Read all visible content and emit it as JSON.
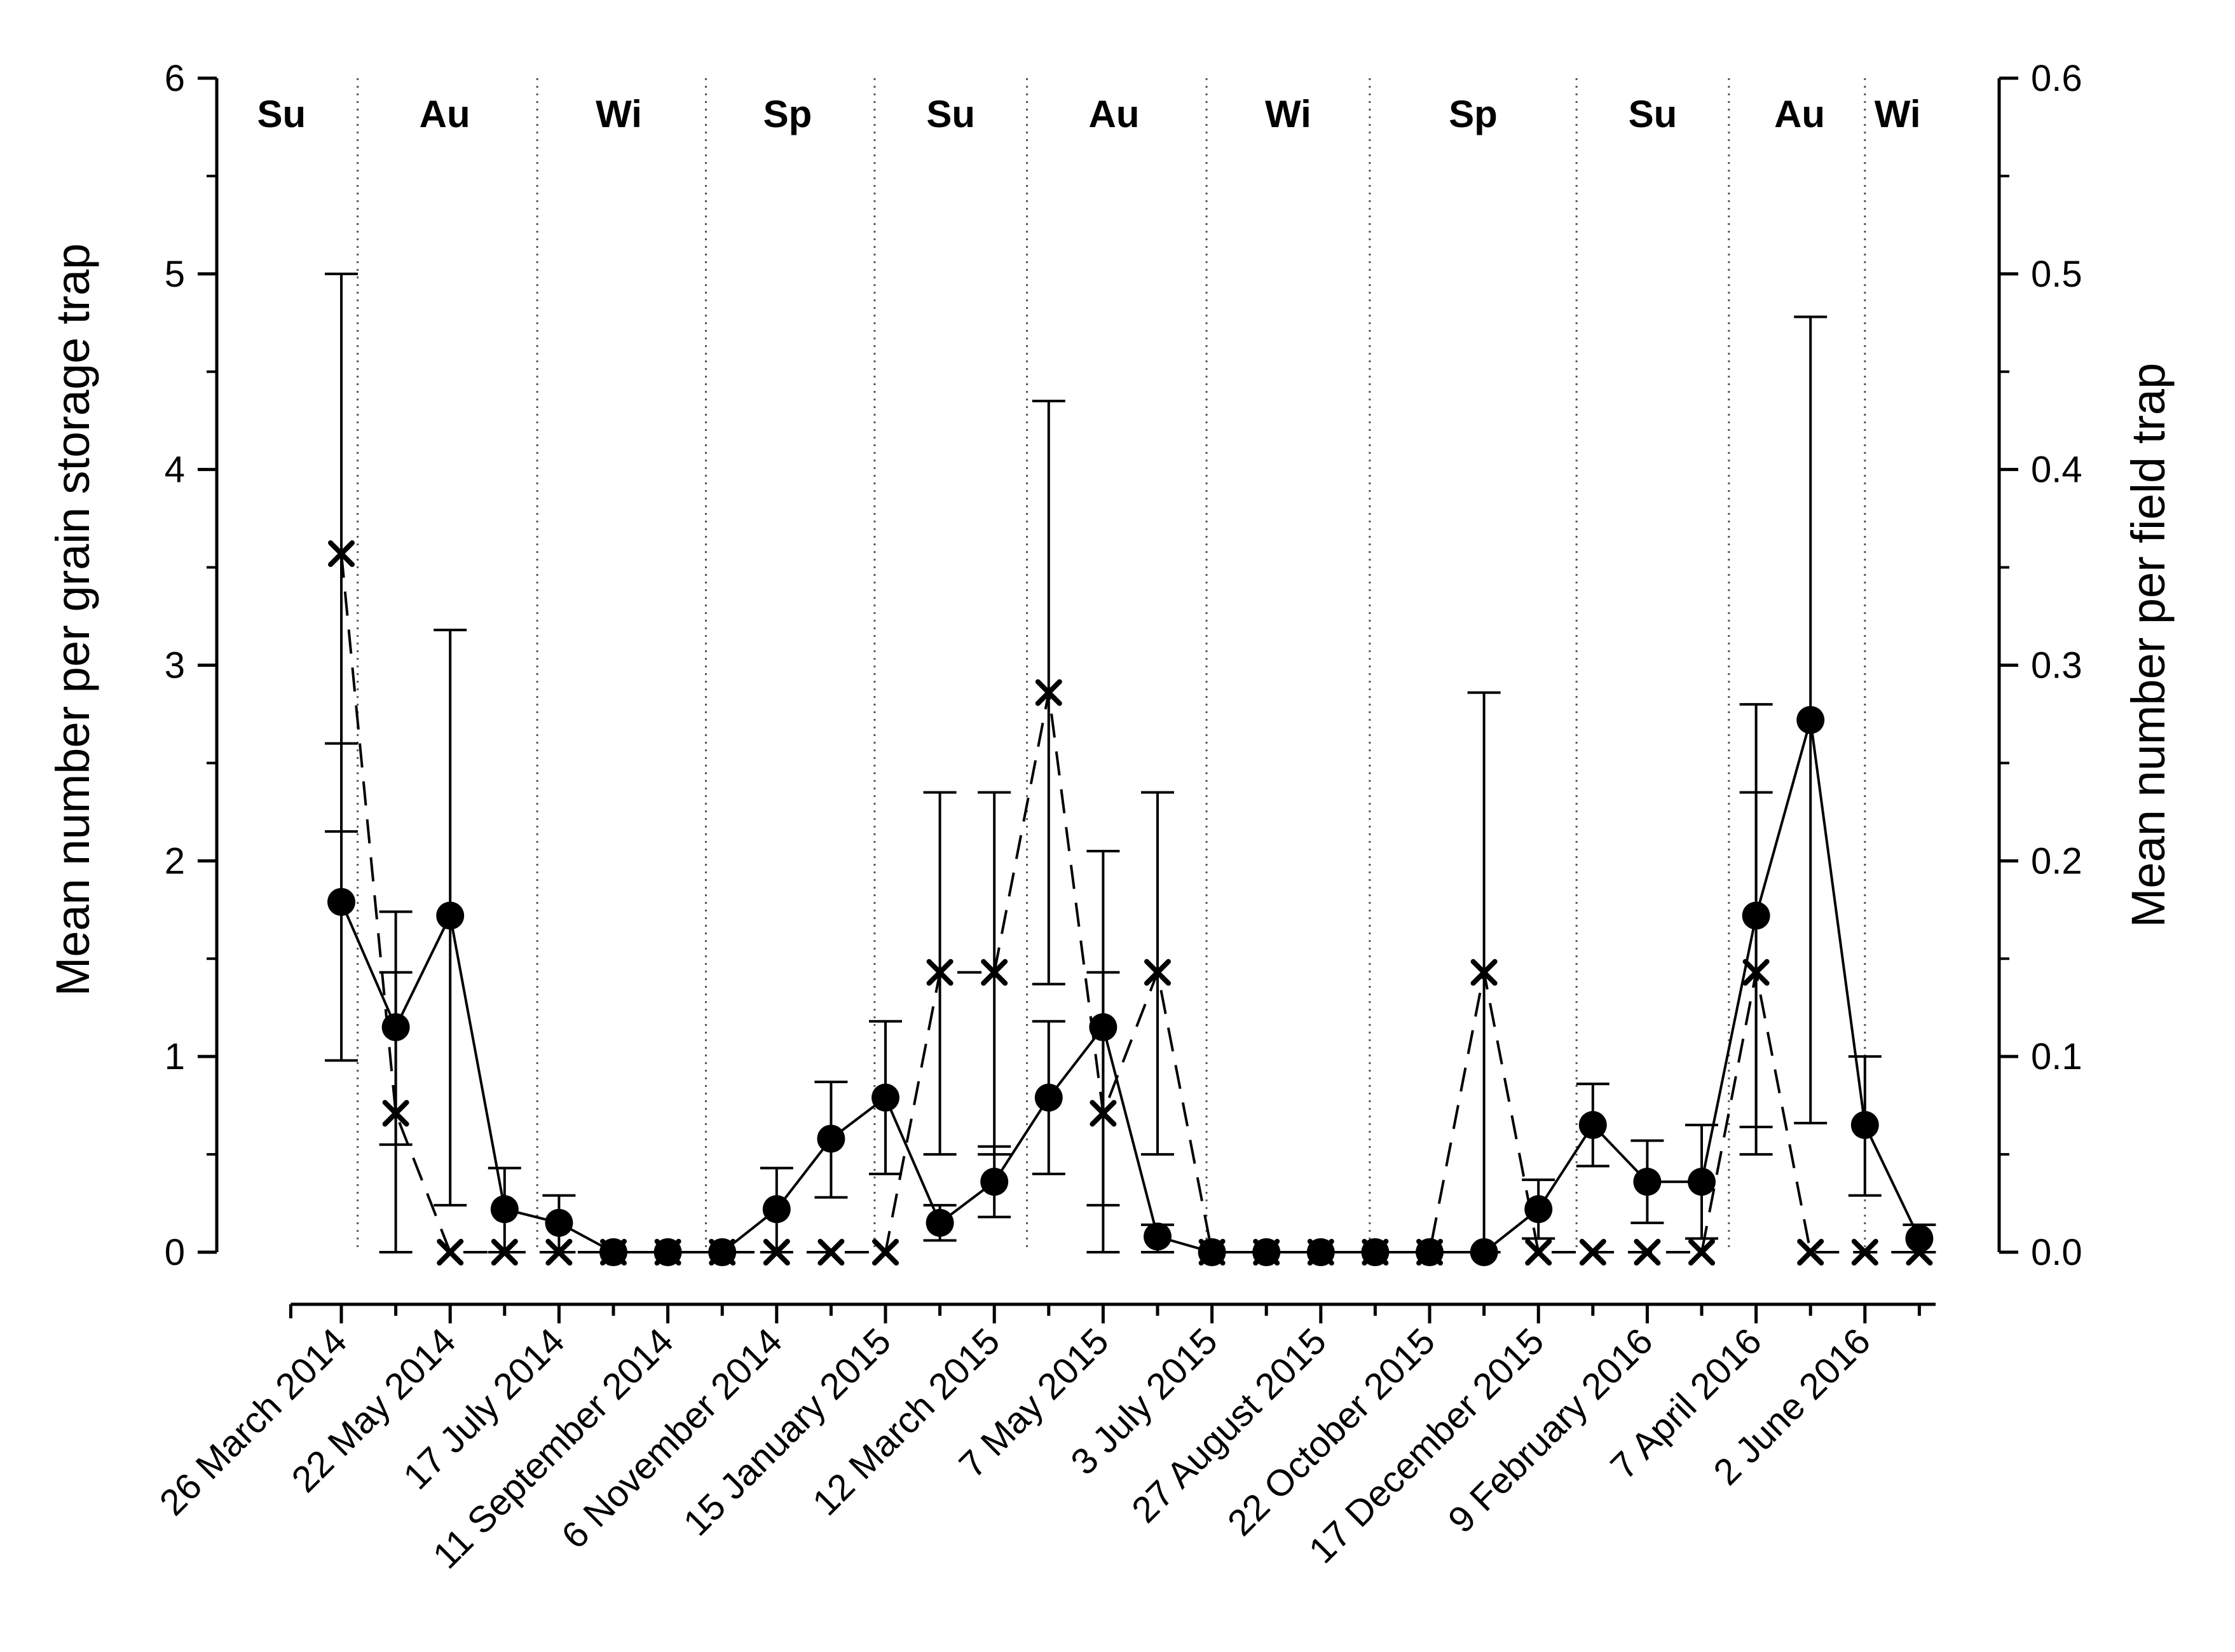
{
  "chart_data": {
    "type": "line",
    "ylabel_left": "Mean number per grain storage trap",
    "ylabel_right": "Mean number per field trap",
    "ylim_left": [
      0,
      6
    ],
    "ylim_right": [
      0,
      0.6
    ],
    "yticks_left": [
      "0",
      "1",
      "2",
      "3",
      "4",
      "5",
      "6"
    ],
    "yticks_right": [
      "0.0",
      "0.1",
      "0.2",
      "0.3",
      "0.4",
      "0.5",
      "0.6"
    ],
    "x_dates": [
      "26 March 2014",
      "22 May 2014",
      "17 July 2014",
      "11 September 2014",
      "6 November 2014",
      "15 January 2015",
      "12 March 2015",
      "7 May 2015",
      "3 July 2015",
      "27 August 2015",
      "22 October 2015",
      "17 December 2015",
      "9 February 2016",
      "7 April 2016",
      "2 June 2016"
    ],
    "x_index_range": [
      -1,
      29.3
    ],
    "season_boundaries": [
      0.3,
      3.6,
      6.7,
      9.8,
      12.6,
      15.9,
      18.9,
      22.7,
      25.5,
      28
    ],
    "seasons": [
      {
        "label": "Su",
        "x": -1.1
      },
      {
        "label": "Au",
        "x": 1.9
      },
      {
        "label": "Wi",
        "x": 5.1
      },
      {
        "label": "Sp",
        "x": 8.2
      },
      {
        "label": "Su",
        "x": 11.2
      },
      {
        "label": "Au",
        "x": 14.2
      },
      {
        "label": "Wi",
        "x": 17.4
      },
      {
        "label": "Sp",
        "x": 20.8
      },
      {
        "label": "Su",
        "x": 24.1
      },
      {
        "label": "Au",
        "x": 26.8
      },
      {
        "label": "Wi",
        "x": 28.6
      }
    ],
    "series": [
      {
        "name": "Grain storage traps",
        "axis": "left",
        "marker": "circle",
        "line": "solid",
        "x": [
          0,
          1,
          2,
          3,
          4,
          5,
          6,
          7,
          8,
          9,
          10,
          11,
          12,
          13,
          14,
          15,
          16,
          17,
          18,
          19,
          20,
          21,
          22,
          23,
          24,
          25,
          26,
          27,
          28,
          29
        ],
        "values": [
          1.79,
          1.15,
          1.72,
          0.22,
          0.15,
          0.0,
          0.0,
          0.0,
          0.22,
          0.58,
          0.79,
          0.15,
          0.36,
          0.79,
          1.15,
          0.08,
          0.0,
          0.0,
          0.0,
          0.0,
          0.0,
          0.0,
          0.22,
          0.65,
          0.36,
          0.36,
          1.72,
          2.72,
          0.65,
          0.07
        ],
        "err_low": [
          0.98,
          0.55,
          0.24,
          0.0,
          0.0,
          0.0,
          0.0,
          0.0,
          0.0,
          0.28,
          0.4,
          0.06,
          0.18,
          0.4,
          0.24,
          0.0,
          0.0,
          0.0,
          0.0,
          0.0,
          0.0,
          0.0,
          0.07,
          0.44,
          0.15,
          0.07,
          0.64,
          0.66,
          0.29,
          0.0
        ],
        "err_high": [
          2.6,
          1.74,
          3.18,
          0.43,
          0.29,
          0.0,
          0.0,
          0.0,
          0.43,
          0.87,
          1.18,
          0.24,
          0.54,
          1.18,
          2.05,
          0.14,
          0.0,
          0.0,
          0.0,
          0.0,
          0.0,
          0.0,
          0.37,
          0.86,
          0.57,
          0.65,
          2.8,
          4.78,
          1.0,
          0.14
        ]
      },
      {
        "name": "Field traps",
        "axis": "right",
        "marker": "x",
        "line": "dashed",
        "x": [
          0,
          1,
          2,
          3,
          4,
          5,
          6,
          7,
          8,
          9,
          10,
          11,
          12,
          13,
          14,
          15,
          16,
          17,
          18,
          19,
          20,
          21,
          22,
          23,
          24,
          25,
          26,
          27,
          28,
          29
        ],
        "values": [
          0.357,
          0.071,
          0.0,
          0.0,
          0.0,
          0.0,
          0.0,
          0.0,
          0.0,
          0.0,
          0.0,
          0.143,
          0.143,
          0.286,
          0.071,
          0.143,
          0.0,
          0.0,
          0.0,
          0.0,
          0.0,
          0.143,
          0.0,
          0.0,
          0.0,
          0.0,
          0.143,
          0.0,
          0.0,
          0.0
        ],
        "err_low": [
          0.215,
          0.0,
          0.0,
          0.0,
          0.0,
          0.0,
          0.0,
          0.0,
          0.0,
          0.0,
          0.0,
          0.05,
          0.05,
          0.137,
          0.0,
          0.05,
          0.0,
          0.0,
          0.0,
          0.0,
          0.0,
          0.0,
          0.0,
          0.0,
          0.0,
          0.0,
          0.05,
          0.0,
          0.0,
          0.0
        ],
        "err_high": [
          0.5,
          0.143,
          0.0,
          0.0,
          0.0,
          0.0,
          0.0,
          0.0,
          0.0,
          0.0,
          0.0,
          0.235,
          0.235,
          0.435,
          0.143,
          0.235,
          0.0,
          0.0,
          0.0,
          0.0,
          0.0,
          0.286,
          0.0,
          0.0,
          0.0,
          0.0,
          0.235,
          0.0,
          0.0,
          0.0
        ]
      }
    ]
  }
}
